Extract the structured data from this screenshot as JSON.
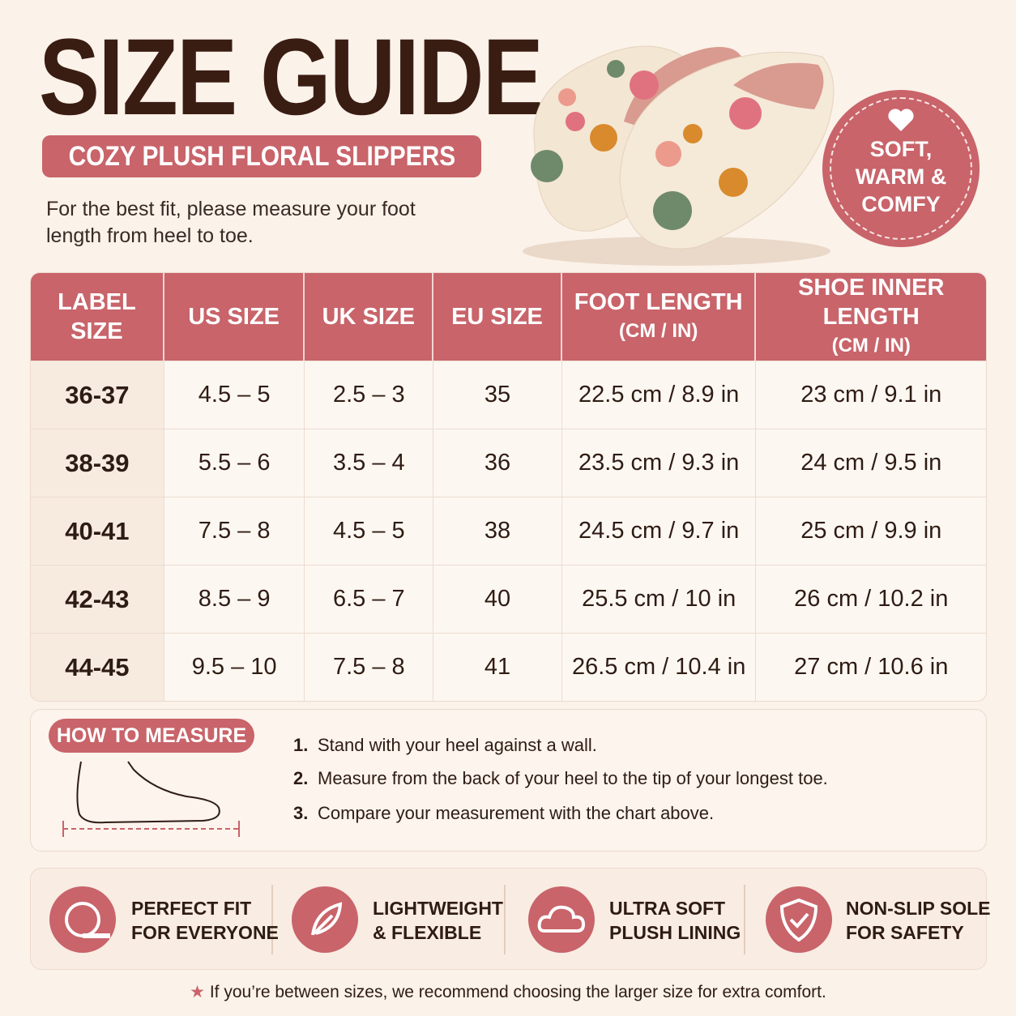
{
  "header": {
    "title": "SIZE GUIDE",
    "subtitle": "COZY PLUSH FLORAL SLIPPERS",
    "intro": "For the best fit, please measure your foot length from heel to toe."
  },
  "badge": {
    "lines": [
      "SOFT,",
      "WARM &",
      "COMFY"
    ]
  },
  "table": {
    "headers": [
      {
        "title": "LABEL SIZE"
      },
      {
        "title": "US SIZE"
      },
      {
        "title": "UK SIZE"
      },
      {
        "title": "EU SIZE"
      },
      {
        "title": "FOOT LENGTH",
        "unit": "(CM / IN)"
      },
      {
        "title": "SHOE INNER LENGTH",
        "unit": "(CM / IN)"
      }
    ],
    "rows": [
      [
        "36-37",
        "4.5 – 5",
        "2.5 – 3",
        "35",
        "22.5 cm / 8.9 in",
        "23 cm / 9.1 in"
      ],
      [
        "38-39",
        "5.5 – 6",
        "3.5 – 4",
        "36",
        "23.5 cm / 9.3 in",
        "24 cm / 9.5 in"
      ],
      [
        "40-41",
        "7.5 – 8",
        "4.5 – 5",
        "38",
        "24.5 cm / 9.7 in",
        "25 cm / 9.9 in"
      ],
      [
        "42-43",
        "8.5 – 9",
        "6.5 – 7",
        "40",
        "25.5 cm / 10 in",
        "26 cm / 10.2 in"
      ],
      [
        "44-45",
        "9.5 – 10",
        "7.5 – 8",
        "41",
        "26.5 cm / 10.4 in",
        "27 cm / 10.6 in"
      ]
    ]
  },
  "measure": {
    "title": "HOW TO MEASURE",
    "steps": [
      {
        "number": "1.",
        "text": "Stand with your heel against a wall."
      },
      {
        "number": "2.",
        "text": "Measure from the back of your heel to the tip of your longest toe."
      },
      {
        "number": "3.",
        "text": "Compare your measurement with the chart above."
      }
    ]
  },
  "features": [
    {
      "lines": [
        "PERFECT FIT",
        "FOR EVERYONE"
      ]
    },
    {
      "lines": [
        "LIGHTWEIGHT",
        "& FLEXIBLE"
      ]
    },
    {
      "lines": [
        "ULTRA SOFT",
        "PLUSH LINING"
      ]
    },
    {
      "lines": [
        "NON-SLIP SOLE",
        "FOR SAFETY"
      ]
    }
  ],
  "footnote": "If you’re between sizes, we recommend choosing the larger size for extra comfort."
}
